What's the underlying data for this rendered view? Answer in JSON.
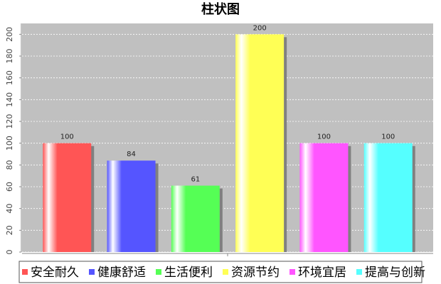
{
  "chart_data": {
    "type": "bar",
    "title": "柱状图",
    "categories": [
      null
    ],
    "series": [
      {
        "name": "安全耐久",
        "color": "#ff5555",
        "values": [
          100
        ]
      },
      {
        "name": "健康舒适",
        "color": "#5555ff",
        "values": [
          84
        ]
      },
      {
        "name": "生活便利",
        "color": "#55ff55",
        "values": [
          61
        ]
      },
      {
        "name": "资源节约",
        "color": "#ffff55",
        "values": [
          200
        ]
      },
      {
        "name": "环境宜居",
        "color": "#ff55ff",
        "values": [
          100
        ]
      },
      {
        "name": "提高与创新",
        "color": "#55ffff",
        "values": [
          100
        ]
      }
    ],
    "ylim": [
      0,
      210
    ],
    "yticks": [
      0,
      20,
      40,
      60,
      80,
      100,
      120,
      140,
      160,
      180,
      200
    ],
    "grid": true,
    "legend": "bottom"
  }
}
